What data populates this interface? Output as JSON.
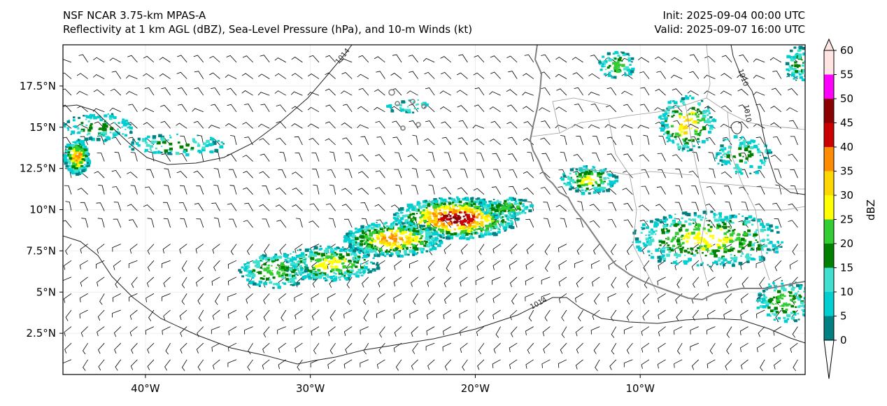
{
  "title": {
    "model": "NSF NCAR 3.75-km MPAS-A",
    "fields": "Reflectivity at 1 km AGL (dBZ), Sea-Level Pressure (hPa), and 10-m Winds (kt)",
    "init": "Init: 2025-09-04 00:00 UTC",
    "valid": "Valid: 2025-09-07 16:00 UTC"
  },
  "axes": {
    "x_ticks": [
      {
        "lon": -40,
        "label": "40°W"
      },
      {
        "lon": -30,
        "label": "30°W"
      },
      {
        "lon": -20,
        "label": "20°W"
      },
      {
        "lon": -10,
        "label": "10°W"
      }
    ],
    "y_ticks": [
      {
        "lat": 2.5,
        "label": "2.5°N"
      },
      {
        "lat": 5,
        "label": "5°N"
      },
      {
        "lat": 7.5,
        "label": "7.5°N"
      },
      {
        "lat": 10,
        "label": "10°N"
      },
      {
        "lat": 12.5,
        "label": "12.5°N"
      },
      {
        "lat": 15,
        "label": "15°N"
      },
      {
        "lat": 17.5,
        "label": "17.5°N"
      }
    ],
    "lon_range": [
      -45,
      0
    ],
    "lat_range": [
      0,
      20
    ]
  },
  "isobar_labels": [
    "1014",
    "1014",
    "1010",
    "1010"
  ],
  "colorbar": {
    "label": "dBZ",
    "levels": [
      {
        "value": "0",
        "color": "#008080"
      },
      {
        "value": "5",
        "color": "#00ced1"
      },
      {
        "value": "10",
        "color": "#40e0d0"
      },
      {
        "value": "15",
        "color": "#008000"
      },
      {
        "value": "20",
        "color": "#32cd32"
      },
      {
        "value": "25",
        "color": "#ffff00"
      },
      {
        "value": "30",
        "color": "#ffd700"
      },
      {
        "value": "35",
        "color": "#ff8c00"
      },
      {
        "value": "40",
        "color": "#cc0000"
      },
      {
        "value": "45",
        "color": "#8b0000"
      },
      {
        "value": "50",
        "color": "#ff00ff"
      },
      {
        "value": "55",
        "color": "#ffe4e1"
      },
      {
        "value": "60",
        "color": ""
      }
    ]
  }
}
